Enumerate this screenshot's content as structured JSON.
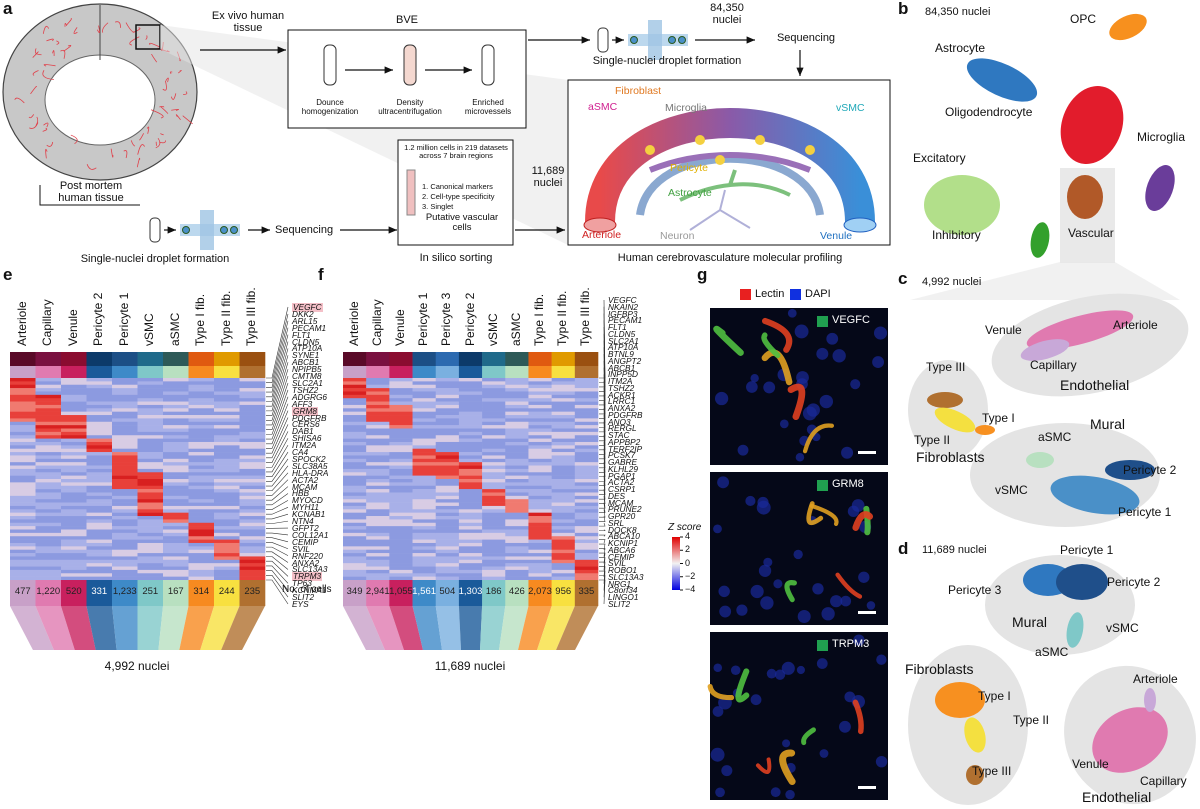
{
  "panel_labels": [
    "a",
    "b",
    "c",
    "d",
    "e",
    "f",
    "g"
  ],
  "panel_a": {
    "ex_vivo": "Ex vivo human tissue",
    "bve": "BVE",
    "bve_steps": [
      "Dounce homogenization",
      "Density ultracentrifugation",
      "Enriched microvessels"
    ],
    "top_nuclei": "84,350 nuclei",
    "top_sequencing": "Sequencing",
    "top_droplet": "Single-nuclei droplet formation",
    "post_mortem": "Post mortem human tissue",
    "bottom_droplet": "Single-nuclei droplet formation",
    "bottom_sequencing": "Sequencing",
    "sorting_header": "1.2 million cells in 219 datasets across 7 brain regions",
    "sorting_steps": [
      "1. Canonical markers",
      "2. Cell-type specificity",
      "3. Singlet"
    ],
    "sorting_result": "Putative vascular cells",
    "sorting_caption": "In silico sorting",
    "bottom_nuclei": "11,689 nuclei",
    "profiling_caption": "Human cerebrovasculature molecular profiling",
    "vessel_labels": [
      "Fibroblast",
      "aSMC",
      "Microglia",
      "vSMC",
      "Pericyte",
      "Astrocyte",
      "Arteriole",
      "Neuron",
      "Venule"
    ]
  },
  "panel_b": {
    "nuclei": "84,350 nuclei",
    "clusters": [
      "OPC",
      "Astrocyte",
      "Oligodendrocyte",
      "Microglia",
      "Excitatory",
      "Inhibitory",
      "Vascular"
    ]
  },
  "panel_c": {
    "nuclei": "4,992 nuclei",
    "labels": [
      "Venule",
      "Arteriole",
      "Capillary",
      "Endothelial",
      "Type III",
      "Type I",
      "Type II",
      "Fibroblasts",
      "Mural",
      "aSMC",
      "Pericyte 2",
      "vSMC",
      "Pericyte 1"
    ]
  },
  "panel_d": {
    "nuclei": "11,689 nuclei",
    "labels": [
      "Pericyte 1",
      "Pericyte 2",
      "Pericyte 3",
      "Mural",
      "vSMC",
      "aSMC",
      "Fibroblasts",
      "Type I",
      "Type II",
      "Type III",
      "Arteriole",
      "Venule",
      "Capillary",
      "Endothelial"
    ]
  },
  "panel_e": {
    "columns": [
      "Arteriole",
      "Capillary",
      "Venule",
      "Pericyte 2",
      "Pericyte 1",
      "vSMC",
      "aSMC",
      "Type I fib.",
      "Type II fib.",
      "Type III fib."
    ],
    "genes": [
      "VEGFC",
      "DKK2",
      "ARL15",
      "PECAM1",
      "FLT1",
      "CLDN5",
      "ATP10A",
      "SYNE1",
      "ABCB1",
      "NPIPB5",
      "CMTM8",
      "SLC2A1",
      "TSHZ2",
      "ADGRG6",
      "AFF3",
      "GRM8",
      "PDGFRB",
      "CERS6",
      "DAB1",
      "SHISA6",
      "ITM2A",
      "CA4",
      "SPOCK2",
      "SLC38A5",
      "HLA-DRA",
      "ACTA2",
      "MCAM",
      "HBB",
      "MYOCD",
      "MYH11",
      "KCNAB1",
      "NTN4",
      "GFPT2",
      "COL12A1",
      "CEMIP",
      "SVIL",
      "RNF220",
      "ANXA2",
      "SLC13A3",
      "TRPM3",
      "TP63",
      "KCNMA1",
      "SLIT2",
      "EYS"
    ],
    "cell_counts": [
      "477",
      "1,220",
      "520",
      "331",
      "1,233",
      "251",
      "167",
      "314",
      "244",
      "235"
    ],
    "counts_label": "No. of cells",
    "nuclei": "4,992 nuclei"
  },
  "panel_f": {
    "columns": [
      "Arteriole",
      "Capillary",
      "Venule",
      "Pericyte 1",
      "Pericyte 3",
      "Pericyte 2",
      "vSMC",
      "aSMC",
      "Type I fib.",
      "Type II fib.",
      "Type III fib."
    ],
    "genes": [
      "VEGFC",
      "NKAIN2",
      "IGFBP3",
      "PECAM1",
      "FLT1",
      "CLDN5",
      "SLC2A1",
      "ATP10A",
      "BTNL9",
      "ANGPT2",
      "ABCB1",
      "INPP5D",
      "ITM2A",
      "TSHZ2",
      "ACKR1",
      "LRRC1",
      "ANXA2",
      "PDGFRB",
      "ANO3",
      "RERGL",
      "STAC",
      "APPBP2",
      "TERF2IP",
      "PCSK7",
      "GABRE",
      "KLHL29",
      "PGAP1",
      "ACTA2",
      "CSRP1",
      "DES",
      "MCAM",
      "PRUNE2",
      "GPR20",
      "SRL",
      "DOCK8",
      "ABCA10",
      "KCNIP1",
      "ABCA6",
      "CEMIP",
      "SVIL",
      "ROBO1",
      "SLC13A3",
      "NRG1",
      "C8orf34",
      "LINGO1",
      "SLIT2"
    ],
    "cell_counts": [
      "349",
      "2,941",
      "1,055",
      "1,561",
      "504",
      "1,303",
      "186",
      "426",
      "2,073",
      "956",
      "335"
    ],
    "nuclei": "11,689 nuclei"
  },
  "colorbar": {
    "title": "Z score",
    "ticks": [
      4,
      2,
      0,
      {
        "value": -2,
        "label": "−2"
      },
      {
        "value": -4,
        "label": "−4"
      }
    ],
    "lim": [
      -4,
      4
    ]
  },
  "panel_g": {
    "legend": [
      "Lectin",
      "DAPI"
    ],
    "images": [
      "VEGFC",
      "GRM8",
      "TRPM3"
    ]
  }
}
